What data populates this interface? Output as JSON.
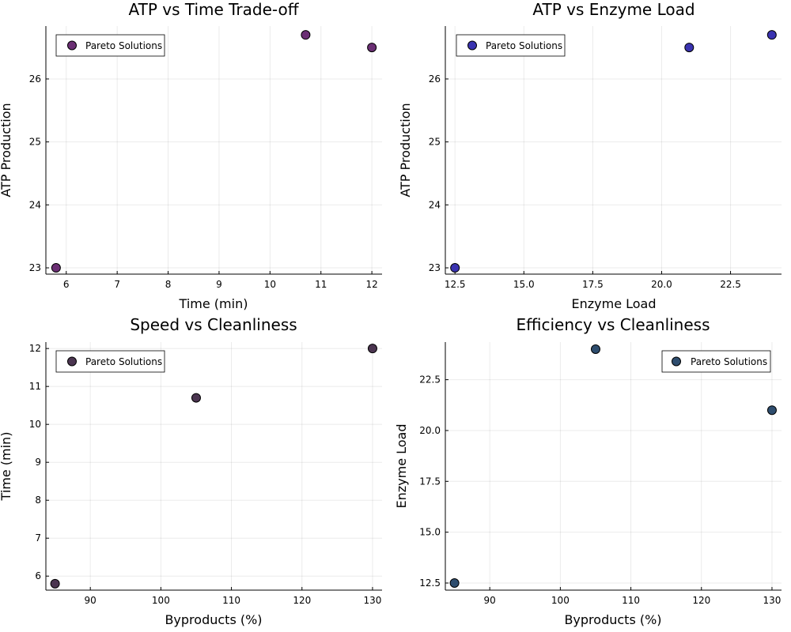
{
  "chart_data": [
    {
      "type": "scatter",
      "title": "ATP vs Time Trade-off",
      "xlabel": "Time (min)",
      "ylabel": "ATP Production",
      "xlim": [
        5.6,
        12.2
      ],
      "ylim": [
        22.9,
        26.84
      ],
      "xticks": [
        6,
        7,
        8,
        9,
        10,
        11,
        12
      ],
      "yticks": [
        23,
        24,
        25,
        26
      ],
      "legend": "top-left",
      "grid": true,
      "series": [
        {
          "name": "Pareto Solutions",
          "color": "#6b2f74",
          "points": [
            {
              "x": 5.8,
              "y": 23.0
            },
            {
              "x": 10.7,
              "y": 26.7
            },
            {
              "x": 12.0,
              "y": 26.5
            }
          ]
        }
      ]
    },
    {
      "type": "scatter",
      "title": "ATP vs Enzyme Load",
      "xlabel": "Enzyme Load",
      "ylabel": "ATP Production",
      "xlim": [
        12.15,
        24.35
      ],
      "ylim": [
        22.9,
        26.84
      ],
      "xticks": [
        12.5,
        15.0,
        17.5,
        20.0,
        22.5
      ],
      "yticks": [
        23,
        24,
        25,
        26
      ],
      "legend": "top-left",
      "grid": true,
      "series": [
        {
          "name": "Pareto Solutions",
          "color": "#3a33b0",
          "points": [
            {
              "x": 12.5,
              "y": 23.0
            },
            {
              "x": 21.0,
              "y": 26.5
            },
            {
              "x": 24.0,
              "y": 26.7
            }
          ]
        }
      ]
    },
    {
      "type": "scatter",
      "title": "Speed vs Cleanliness",
      "xlabel": "Byproducts (%)",
      "ylabel": "Time (min)",
      "xlim": [
        83.7,
        131.35
      ],
      "ylim": [
        5.63,
        12.17
      ],
      "xticks": [
        90,
        100,
        110,
        120,
        130
      ],
      "yticks": [
        6,
        7,
        8,
        9,
        10,
        11,
        12
      ],
      "legend": "top-left",
      "grid": true,
      "series": [
        {
          "name": "Pareto Solutions",
          "color": "#4b3550",
          "points": [
            {
              "x": 85,
              "y": 5.8
            },
            {
              "x": 105,
              "y": 10.7
            },
            {
              "x": 130,
              "y": 12.0
            }
          ]
        }
      ]
    },
    {
      "type": "scatter",
      "title": "Efficiency vs Cleanliness",
      "xlabel": "Byproducts (%)",
      "ylabel": "Enzyme Load",
      "xlim": [
        83.7,
        131.35
      ],
      "ylim": [
        12.15,
        24.35
      ],
      "xticks": [
        90,
        100,
        110,
        120,
        130
      ],
      "yticks": [
        12.5,
        15.0,
        17.5,
        20.0,
        22.5
      ],
      "legend": "top-right",
      "grid": true,
      "series": [
        {
          "name": "Pareto Solutions",
          "color": "#2e4d6e",
          "points": [
            {
              "x": 85,
              "y": 12.5
            },
            {
              "x": 105,
              "y": 24.0
            },
            {
              "x": 130,
              "y": 21.0
            }
          ]
        }
      ]
    }
  ]
}
